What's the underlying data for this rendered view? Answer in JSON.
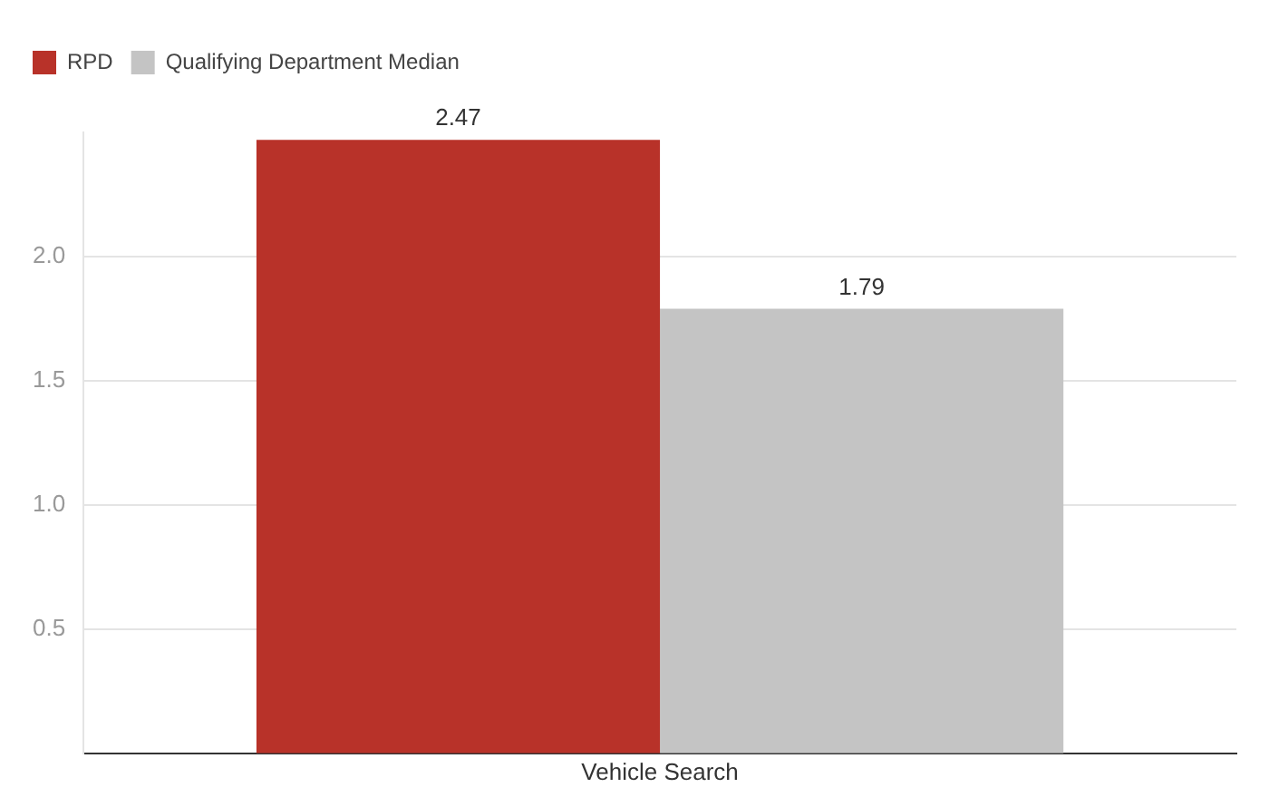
{
  "chart_data": {
    "type": "bar",
    "categories": [
      "Vehicle Search"
    ],
    "series": [
      {
        "name": "RPD",
        "color": "#b83229",
        "values": [
          2.47
        ]
      },
      {
        "name": "Qualifying Department Median",
        "color": "#c4c4c4",
        "values": [
          1.79
        ]
      }
    ],
    "ylim": [
      0,
      2.5
    ],
    "yticks": [
      {
        "value": 0.5,
        "label": "0.5"
      },
      {
        "value": 1,
        "label": "1.0"
      },
      {
        "value": 1.5,
        "label": "1.5"
      },
      {
        "value": 2,
        "label": "2.0"
      }
    ],
    "grid": "y",
    "legend": "top left",
    "data_labels": true
  }
}
